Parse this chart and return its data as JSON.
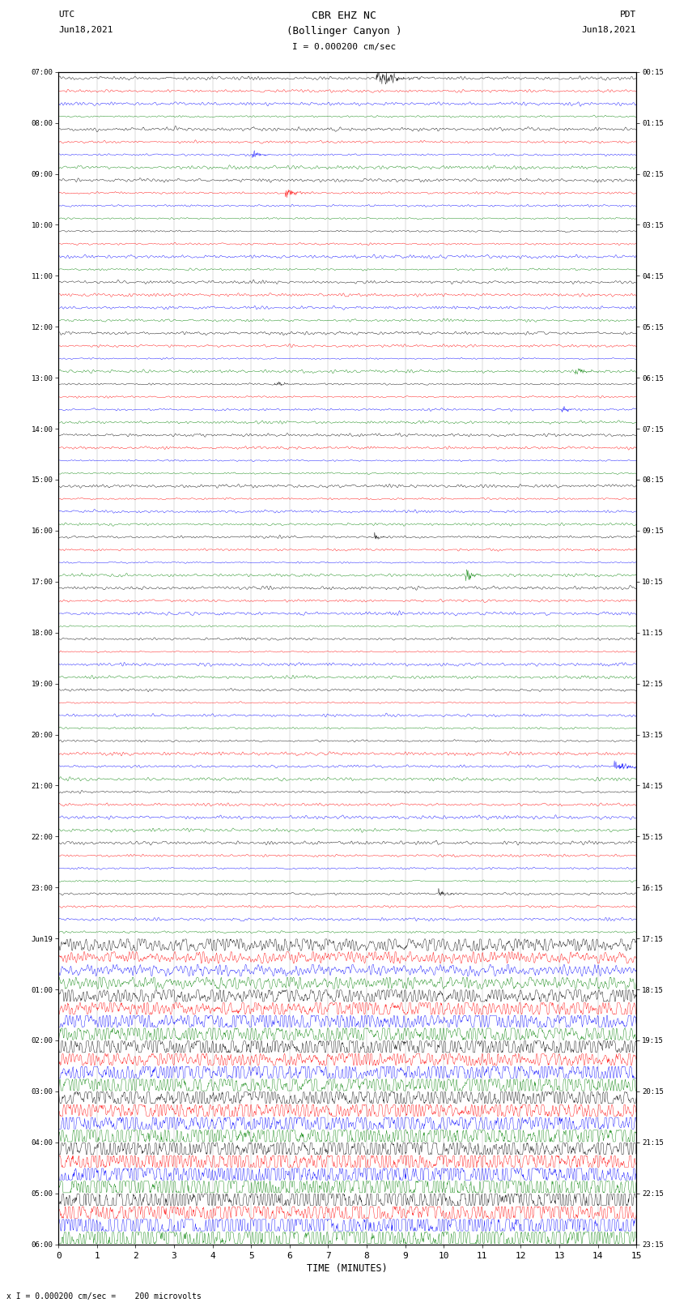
{
  "title_line1": "CBR EHZ NC",
  "title_line2": "(Bollinger Canyon )",
  "scale_text": "I = 0.000200 cm/sec",
  "left_label": "UTC",
  "left_date": "Jun18,2021",
  "right_label": "PDT",
  "right_date": "Jun18,2021",
  "xlabel": "TIME (MINUTES)",
  "bottom_note": "x I = 0.000200 cm/sec =    200 microvolts",
  "xmin": 0,
  "xmax": 15,
  "trace_colors": [
    "black",
    "red",
    "blue",
    "green"
  ],
  "utc_hour_labels": [
    "07:00",
    "08:00",
    "09:00",
    "10:00",
    "11:00",
    "12:00",
    "13:00",
    "14:00",
    "15:00",
    "16:00",
    "17:00",
    "18:00",
    "19:00",
    "20:00",
    "21:00",
    "22:00",
    "23:00",
    "Jun19",
    "01:00",
    "02:00",
    "03:00",
    "04:00",
    "05:00",
    "06:00"
  ],
  "pdt_hour_labels": [
    "00:15",
    "01:15",
    "02:15",
    "03:15",
    "04:15",
    "05:15",
    "06:15",
    "07:15",
    "08:15",
    "09:15",
    "10:15",
    "11:15",
    "12:15",
    "13:15",
    "14:15",
    "15:15",
    "16:15",
    "17:15",
    "18:15",
    "19:15",
    "20:15",
    "21:15",
    "22:15",
    "23:15"
  ],
  "n_hours": 23,
  "n_traces_per_hour": 4,
  "noise_quiet_scale": 0.04,
  "noise_active_scale": 0.25,
  "quiet_hours": 17,
  "background_color": "white",
  "grid_color": "#999999",
  "figsize": [
    8.5,
    16.13
  ],
  "dpi": 100,
  "lw": 0.3
}
